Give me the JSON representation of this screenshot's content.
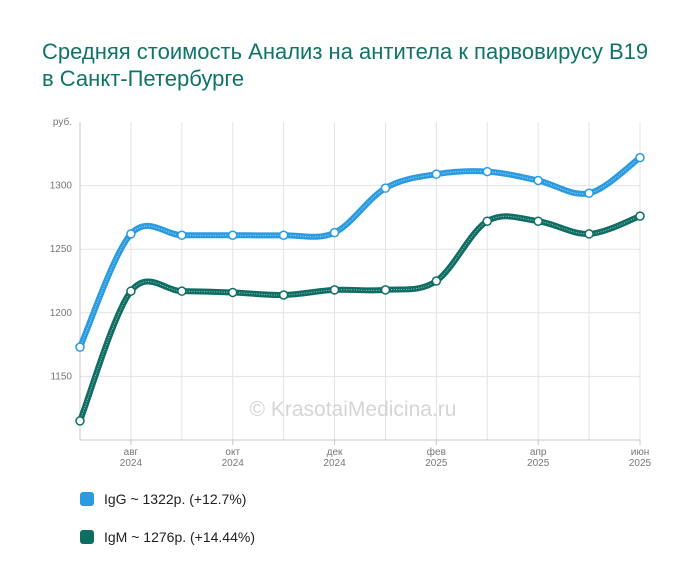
{
  "title": "Средняя стоимость Анализ на антитела к парвовирусу B19 в Санкт-Петербурге",
  "watermark": "© KrasotaiMedicina.ru",
  "legend": [
    {
      "label": "IgG ~ 1322р. (+12.7%)",
      "color": "#2a9be0"
    },
    {
      "label": "IgM ~ 1276р. (+14.44%)",
      "color": "#0f6e63"
    }
  ],
  "chart_data": {
    "type": "line",
    "y_unit": "руб.",
    "ylim": [
      1100,
      1350
    ],
    "y_ticks": [
      1150,
      1200,
      1250,
      1300
    ],
    "x": [
      "2024-07",
      "2024-08",
      "2024-09",
      "2024-10",
      "2024-11",
      "2024-12",
      "2025-01",
      "2025-02",
      "2025-03",
      "2025-04",
      "2025-05",
      "2025-06"
    ],
    "x_tick_labels": [
      {
        "month": "авг",
        "year": "2024"
      },
      {
        "month": "окт",
        "year": "2024"
      },
      {
        "month": "дек",
        "year": "2024"
      },
      {
        "month": "фев",
        "year": "2025"
      },
      {
        "month": "апр",
        "year": "2025"
      },
      {
        "month": "июн",
        "year": "2025"
      }
    ],
    "grid": true,
    "series": [
      {
        "name": "IgG",
        "color": "#2a9be0",
        "values": [
          1173,
          1262,
          1261,
          1261,
          1261,
          1263,
          1298,
          1309,
          1311,
          1304,
          1294,
          1322
        ]
      },
      {
        "name": "IgM",
        "color": "#0f6e63",
        "values": [
          1115,
          1217,
          1217,
          1216,
          1214,
          1218,
          1218,
          1225,
          1272,
          1272,
          1262,
          1276
        ]
      }
    ]
  }
}
